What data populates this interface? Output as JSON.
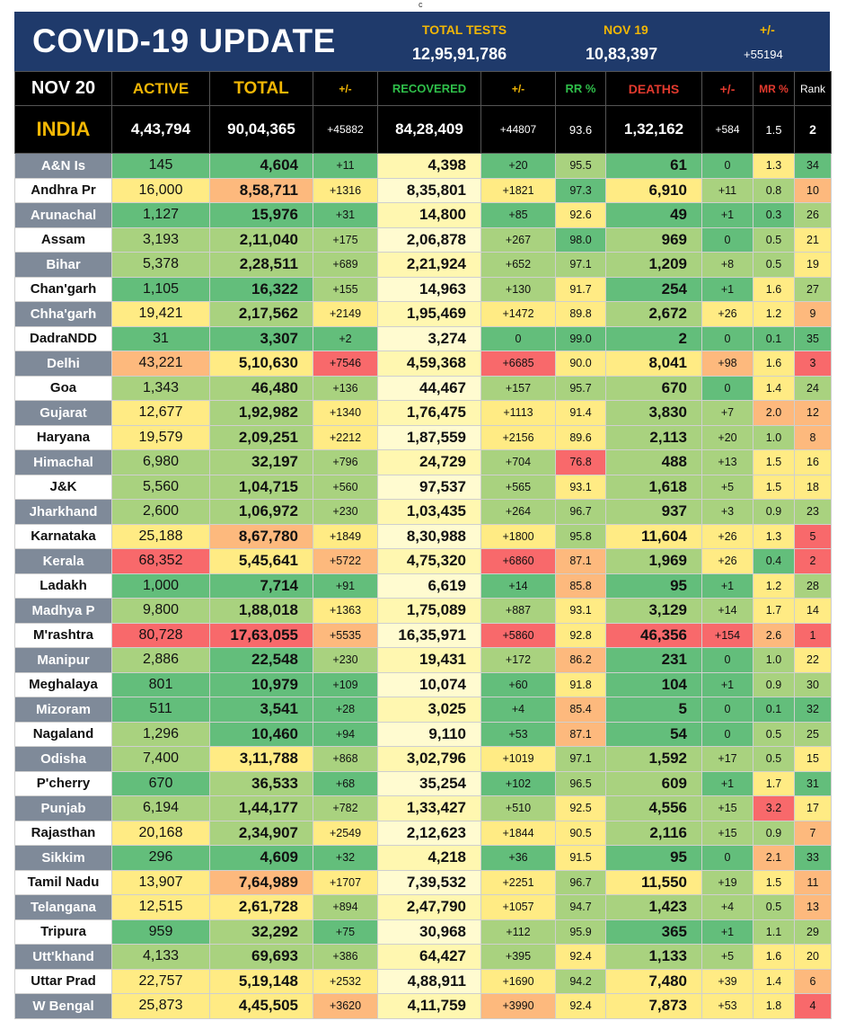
{
  "top_mark": "c",
  "banner": {
    "title": "COVID-19 UPDATE",
    "total_tests_label": "TOTAL TESTS",
    "total_tests_value": "12,95,91,786",
    "date_label": "NOV 19",
    "date_value": "10,83,397",
    "change_label": "+/-",
    "change_value": "+55194"
  },
  "header": {
    "date": "NOV 20",
    "active": "ACTIVE",
    "total": "TOTAL",
    "total_change": "+/-",
    "recovered": "RECOVERED",
    "recovered_change": "+/-",
    "rr": "RR %",
    "deaths": "DEATHS",
    "deaths_change": "+/-",
    "mr": "MR %",
    "rank": "Rank"
  },
  "india": {
    "name": "INDIA",
    "active": "4,43,794",
    "total": "90,04,365",
    "total_change": "+45882",
    "recovered": "84,28,409",
    "recovered_change": "+44807",
    "rr": "93.6",
    "deaths": "1,32,162",
    "deaths_change": "+584",
    "mr": "1.5",
    "rank": "2"
  },
  "colors": {
    "green": "#63be7b",
    "light_green": "#a9d27f",
    "yellow": "#ffeb84",
    "orange": "#fdb97d",
    "red": "#f8696b",
    "header_bg": "#1f3a6b",
    "gold": "#f2b705"
  },
  "rows": [
    {
      "state": "A&N Is",
      "active": "145",
      "total": "4,604",
      "total_change": "+11",
      "recovered": "4,398",
      "recovered_change": "+20",
      "rr": "95.5",
      "deaths": "61",
      "deaths_change": "0",
      "mr": "1.3",
      "rank": "34"
    },
    {
      "state": "Andhra Pr",
      "active": "16,000",
      "total": "8,58,711",
      "total_change": "+1316",
      "recovered": "8,35,801",
      "recovered_change": "+1821",
      "rr": "97.3",
      "deaths": "6,910",
      "deaths_change": "+11",
      "mr": "0.8",
      "rank": "10"
    },
    {
      "state": "Arunachal",
      "active": "1,127",
      "total": "15,976",
      "total_change": "+31",
      "recovered": "14,800",
      "recovered_change": "+85",
      "rr": "92.6",
      "deaths": "49",
      "deaths_change": "+1",
      "mr": "0.3",
      "rank": "26"
    },
    {
      "state": "Assam",
      "active": "3,193",
      "total": "2,11,040",
      "total_change": "+175",
      "recovered": "2,06,878",
      "recovered_change": "+267",
      "rr": "98.0",
      "deaths": "969",
      "deaths_change": "0",
      "mr": "0.5",
      "rank": "21"
    },
    {
      "state": "Bihar",
      "active": "5,378",
      "total": "2,28,511",
      "total_change": "+689",
      "recovered": "2,21,924",
      "recovered_change": "+652",
      "rr": "97.1",
      "deaths": "1,209",
      "deaths_change": "+8",
      "mr": "0.5",
      "rank": "19"
    },
    {
      "state": "Chan'garh",
      "active": "1,105",
      "total": "16,322",
      "total_change": "+155",
      "recovered": "14,963",
      "recovered_change": "+130",
      "rr": "91.7",
      "deaths": "254",
      "deaths_change": "+1",
      "mr": "1.6",
      "rank": "27"
    },
    {
      "state": "Chha'garh",
      "active": "19,421",
      "total": "2,17,562",
      "total_change": "+2149",
      "recovered": "1,95,469",
      "recovered_change": "+1472",
      "rr": "89.8",
      "deaths": "2,672",
      "deaths_change": "+26",
      "mr": "1.2",
      "rank": "9"
    },
    {
      "state": "DadraNDD",
      "active": "31",
      "total": "3,307",
      "total_change": "+2",
      "recovered": "3,274",
      "recovered_change": "0",
      "rr": "99.0",
      "deaths": "2",
      "deaths_change": "0",
      "mr": "0.1",
      "rank": "35"
    },
    {
      "state": "Delhi",
      "active": "43,221",
      "total": "5,10,630",
      "total_change": "+7546",
      "recovered": "4,59,368",
      "recovered_change": "+6685",
      "rr": "90.0",
      "deaths": "8,041",
      "deaths_change": "+98",
      "mr": "1.6",
      "rank": "3"
    },
    {
      "state": "Goa",
      "active": "1,343",
      "total": "46,480",
      "total_change": "+136",
      "recovered": "44,467",
      "recovered_change": "+157",
      "rr": "95.7",
      "deaths": "670",
      "deaths_change": "0",
      "mr": "1.4",
      "rank": "24"
    },
    {
      "state": "Gujarat",
      "active": "12,677",
      "total": "1,92,982",
      "total_change": "+1340",
      "recovered": "1,76,475",
      "recovered_change": "+1113",
      "rr": "91.4",
      "deaths": "3,830",
      "deaths_change": "+7",
      "mr": "2.0",
      "rank": "12"
    },
    {
      "state": "Haryana",
      "active": "19,579",
      "total": "2,09,251",
      "total_change": "+2212",
      "recovered": "1,87,559",
      "recovered_change": "+2156",
      "rr": "89.6",
      "deaths": "2,113",
      "deaths_change": "+20",
      "mr": "1.0",
      "rank": "8"
    },
    {
      "state": "Himachal",
      "active": "6,980",
      "total": "32,197",
      "total_change": "+796",
      "recovered": "24,729",
      "recovered_change": "+704",
      "rr": "76.8",
      "deaths": "488",
      "deaths_change": "+13",
      "mr": "1.5",
      "rank": "16"
    },
    {
      "state": "J&K",
      "active": "5,560",
      "total": "1,04,715",
      "total_change": "+560",
      "recovered": "97,537",
      "recovered_change": "+565",
      "rr": "93.1",
      "deaths": "1,618",
      "deaths_change": "+5",
      "mr": "1.5",
      "rank": "18"
    },
    {
      "state": "Jharkhand",
      "active": "2,600",
      "total": "1,06,972",
      "total_change": "+230",
      "recovered": "1,03,435",
      "recovered_change": "+264",
      "rr": "96.7",
      "deaths": "937",
      "deaths_change": "+3",
      "mr": "0.9",
      "rank": "23"
    },
    {
      "state": "Karnataka",
      "active": "25,188",
      "total": "8,67,780",
      "total_change": "+1849",
      "recovered": "8,30,988",
      "recovered_change": "+1800",
      "rr": "95.8",
      "deaths": "11,604",
      "deaths_change": "+26",
      "mr": "1.3",
      "rank": "5"
    },
    {
      "state": "Kerala",
      "active": "68,352",
      "total": "5,45,641",
      "total_change": "+5722",
      "recovered": "4,75,320",
      "recovered_change": "+6860",
      "rr": "87.1",
      "deaths": "1,969",
      "deaths_change": "+26",
      "mr": "0.4",
      "rank": "2"
    },
    {
      "state": "Ladakh",
      "active": "1,000",
      "total": "7,714",
      "total_change": "+91",
      "recovered": "6,619",
      "recovered_change": "+14",
      "rr": "85.8",
      "deaths": "95",
      "deaths_change": "+1",
      "mr": "1.2",
      "rank": "28"
    },
    {
      "state": "Madhya P",
      "active": "9,800",
      "total": "1,88,018",
      "total_change": "+1363",
      "recovered": "1,75,089",
      "recovered_change": "+887",
      "rr": "93.1",
      "deaths": "3,129",
      "deaths_change": "+14",
      "mr": "1.7",
      "rank": "14"
    },
    {
      "state": "M'rashtra",
      "active": "80,728",
      "total": "17,63,055",
      "total_change": "+5535",
      "recovered": "16,35,971",
      "recovered_change": "+5860",
      "rr": "92.8",
      "deaths": "46,356",
      "deaths_change": "+154",
      "mr": "2.6",
      "rank": "1"
    },
    {
      "state": "Manipur",
      "active": "2,886",
      "total": "22,548",
      "total_change": "+230",
      "recovered": "19,431",
      "recovered_change": "+172",
      "rr": "86.2",
      "deaths": "231",
      "deaths_change": "0",
      "mr": "1.0",
      "rank": "22"
    },
    {
      "state": "Meghalaya",
      "active": "801",
      "total": "10,979",
      "total_change": "+109",
      "recovered": "10,074",
      "recovered_change": "+60",
      "rr": "91.8",
      "deaths": "104",
      "deaths_change": "+1",
      "mr": "0.9",
      "rank": "30"
    },
    {
      "state": "Mizoram",
      "active": "511",
      "total": "3,541",
      "total_change": "+28",
      "recovered": "3,025",
      "recovered_change": "+4",
      "rr": "85.4",
      "deaths": "5",
      "deaths_change": "0",
      "mr": "0.1",
      "rank": "32"
    },
    {
      "state": "Nagaland",
      "active": "1,296",
      "total": "10,460",
      "total_change": "+94",
      "recovered": "9,110",
      "recovered_change": "+53",
      "rr": "87.1",
      "deaths": "54",
      "deaths_change": "0",
      "mr": "0.5",
      "rank": "25"
    },
    {
      "state": "Odisha",
      "active": "7,400",
      "total": "3,11,788",
      "total_change": "+868",
      "recovered": "3,02,796",
      "recovered_change": "+1019",
      "rr": "97.1",
      "deaths": "1,592",
      "deaths_change": "+17",
      "mr": "0.5",
      "rank": "15"
    },
    {
      "state": "P'cherry",
      "active": "670",
      "total": "36,533",
      "total_change": "+68",
      "recovered": "35,254",
      "recovered_change": "+102",
      "rr": "96.5",
      "deaths": "609",
      "deaths_change": "+1",
      "mr": "1.7",
      "rank": "31"
    },
    {
      "state": "Punjab",
      "active": "6,194",
      "total": "1,44,177",
      "total_change": "+782",
      "recovered": "1,33,427",
      "recovered_change": "+510",
      "rr": "92.5",
      "deaths": "4,556",
      "deaths_change": "+15",
      "mr": "3.2",
      "rank": "17"
    },
    {
      "state": "Rajasthan",
      "active": "20,168",
      "total": "2,34,907",
      "total_change": "+2549",
      "recovered": "2,12,623",
      "recovered_change": "+1844",
      "rr": "90.5",
      "deaths": "2,116",
      "deaths_change": "+15",
      "mr": "0.9",
      "rank": "7"
    },
    {
      "state": "Sikkim",
      "active": "296",
      "total": "4,609",
      "total_change": "+32",
      "recovered": "4,218",
      "recovered_change": "+36",
      "rr": "91.5",
      "deaths": "95",
      "deaths_change": "0",
      "mr": "2.1",
      "rank": "33"
    },
    {
      "state": "Tamil Nadu",
      "active": "13,907",
      "total": "7,64,989",
      "total_change": "+1707",
      "recovered": "7,39,532",
      "recovered_change": "+2251",
      "rr": "96.7",
      "deaths": "11,550",
      "deaths_change": "+19",
      "mr": "1.5",
      "rank": "11"
    },
    {
      "state": "Telangana",
      "active": "12,515",
      "total": "2,61,728",
      "total_change": "+894",
      "recovered": "2,47,790",
      "recovered_change": "+1057",
      "rr": "94.7",
      "deaths": "1,423",
      "deaths_change": "+4",
      "mr": "0.5",
      "rank": "13"
    },
    {
      "state": "Tripura",
      "active": "959",
      "total": "32,292",
      "total_change": "+75",
      "recovered": "30,968",
      "recovered_change": "+112",
      "rr": "95.9",
      "deaths": "365",
      "deaths_change": "+1",
      "mr": "1.1",
      "rank": "29"
    },
    {
      "state": "Utt'khand",
      "active": "4,133",
      "total": "69,693",
      "total_change": "+386",
      "recovered": "64,427",
      "recovered_change": "+395",
      "rr": "92.4",
      "deaths": "1,133",
      "deaths_change": "+5",
      "mr": "1.6",
      "rank": "20"
    },
    {
      "state": "Uttar Prad",
      "active": "22,757",
      "total": "5,19,148",
      "total_change": "+2532",
      "recovered": "4,88,911",
      "recovered_change": "+1690",
      "rr": "94.2",
      "deaths": "7,480",
      "deaths_change": "+39",
      "mr": "1.4",
      "rank": "6"
    },
    {
      "state": "W Bengal",
      "active": "25,873",
      "total": "4,45,505",
      "total_change": "+3620",
      "recovered": "4,11,759",
      "recovered_change": "+3990",
      "rr": "92.4",
      "deaths": "7,873",
      "deaths_change": "+53",
      "mr": "1.8",
      "rank": "4"
    }
  ]
}
